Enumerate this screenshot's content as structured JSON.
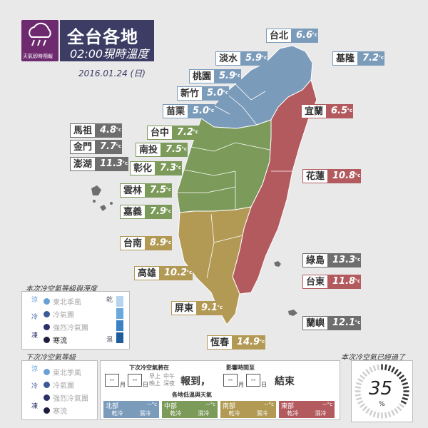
{
  "header": {
    "logo_text": "天氣即時預報",
    "title": "全台各地",
    "subtitle": "02:00現時溫度",
    "date": "2016.01.24 (日)"
  },
  "labels": [
    {
      "name": "台北",
      "value": "6.6",
      "unit": "°c",
      "color": "blue"
    },
    {
      "name": "淡水",
      "value": "5.9",
      "unit": "°c",
      "color": "blue"
    },
    {
      "name": "基隆",
      "value": "7.2",
      "unit": "°c",
      "color": "blue"
    },
    {
      "name": "桃園",
      "value": "5.9",
      "unit": "°c",
      "color": "blue"
    },
    {
      "name": "新竹",
      "value": "5.0",
      "unit": "°c",
      "color": "blue"
    },
    {
      "name": "苗栗",
      "value": "5.0",
      "unit": "°c",
      "color": "blue"
    },
    {
      "name": "宜蘭",
      "value": "6.5",
      "unit": "°c",
      "color": "red"
    },
    {
      "name": "馬祖",
      "value": "4.8",
      "unit": "°c",
      "color": "grey"
    },
    {
      "name": "金門",
      "value": "7.7",
      "unit": "°c",
      "color": "grey"
    },
    {
      "name": "澎湖",
      "value": "11.3",
      "unit": "°c",
      "color": "grey"
    },
    {
      "name": "台中",
      "value": "7.2",
      "unit": "°c",
      "color": "green"
    },
    {
      "name": "南投",
      "value": "7.5",
      "unit": "°c",
      "color": "green"
    },
    {
      "name": "彰化",
      "value": "7.3",
      "unit": "°c",
      "color": "green"
    },
    {
      "name": "雲林",
      "value": "7.5",
      "unit": "°c",
      "color": "green"
    },
    {
      "name": "嘉義",
      "value": "7.9",
      "unit": "°c",
      "color": "green"
    },
    {
      "name": "花蓮",
      "value": "10.8",
      "unit": "°c",
      "color": "red"
    },
    {
      "name": "台南",
      "value": "8.9",
      "unit": "°c",
      "color": "gold"
    },
    {
      "name": "高雄",
      "value": "10.2",
      "unit": "°c",
      "color": "gold"
    },
    {
      "name": "綠島",
      "value": "13.3",
      "unit": "°c",
      "color": "grey"
    },
    {
      "name": "台東",
      "value": "11.8",
      "unit": "°c",
      "color": "red"
    },
    {
      "name": "屏東",
      "value": "9.1",
      "unit": "°c",
      "color": "gold"
    },
    {
      "name": "蘭嶼",
      "value": "12.1",
      "unit": "°c",
      "color": "grey"
    },
    {
      "name": "恆春",
      "value": "14.9",
      "unit": "°c",
      "color": "gold"
    }
  ],
  "legend1": {
    "title": "本次冷空氣等級與溼度",
    "tag_top": "涼",
    "tag_mid": "冷",
    "tag_bot": "凍",
    "items": [
      "東北季風",
      "冷氣團",
      "強烈冷氣團",
      "寒流"
    ],
    "wet": "乾",
    "dry": "濕"
  },
  "legend2": {
    "title": "下次冷空氣等級",
    "tag_top": "涼",
    "tag_mid": "冷",
    "tag_bot": "凍",
    "items": [
      "東北季風",
      "冷氣團",
      "強烈冷氣團",
      "寒流"
    ]
  },
  "forecast": {
    "arrive_title": "下次冷空氣將在",
    "affect_title": "影響時間至",
    "month": "月",
    "day": "日",
    "time_early": "早上",
    "time_noon": "中午",
    "time_eve": "晚上",
    "time_night": "深夜",
    "arrive": "報到，",
    "end": "結束",
    "dash": "--",
    "region_title": "各地低溫與天氣",
    "regions": [
      {
        "name": "北部",
        "temp": "--",
        "sym": "°c",
        "dry": "乾冷",
        "wet": "濕冷",
        "color": "#7b9bbb"
      },
      {
        "name": "中部",
        "temp": "--",
        "sym": "°c",
        "dry": "乾冷",
        "wet": "濕冷",
        "color": "#7c9a5a"
      },
      {
        "name": "南部",
        "temp": "--",
        "sym": "°c",
        "dry": "乾冷",
        "wet": "濕冷",
        "color": "#b29a55"
      },
      {
        "name": "東部",
        "temp": "--",
        "sym": "°c",
        "dry": "乾冷",
        "wet": "濕冷",
        "color": "#b35a5f"
      }
    ]
  },
  "gauge": {
    "title": "本次冷空氣已經過了",
    "value": "35",
    "unit": "%"
  }
}
